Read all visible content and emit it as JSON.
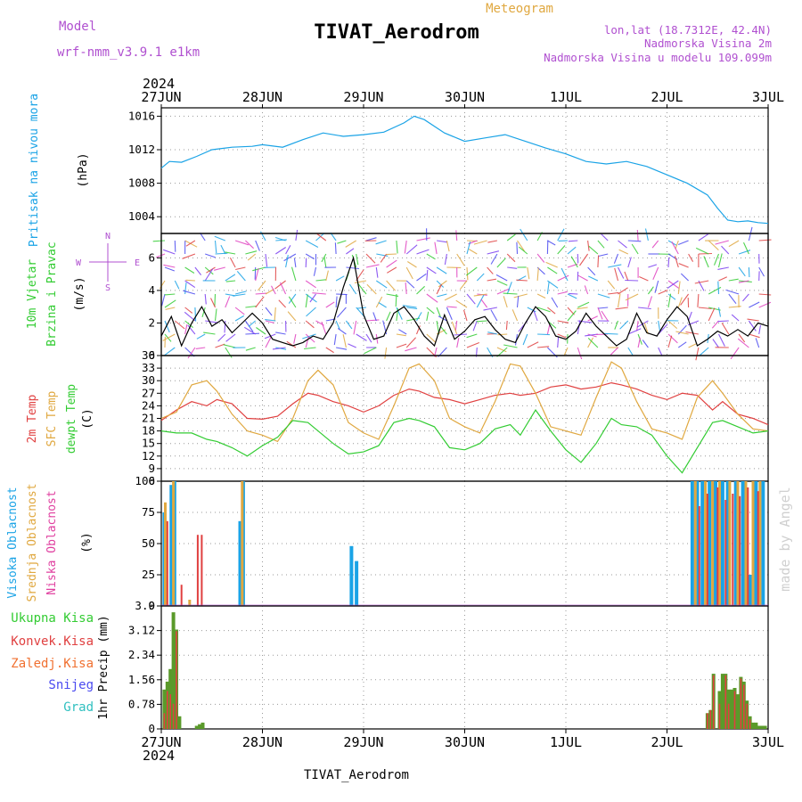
{
  "header": {
    "model_label": "Model",
    "model_name": "wrf-nmm_v3.9.1  e1km",
    "title": "TIVAT_Aerodrom",
    "subtitle": "Meteogram",
    "lonlat": "lon,lat (18.7312E, 42.4N)",
    "elev_station": "Nadmorska Visina 2m",
    "elev_model": "Nadmorska Visina u modelu 109.099m",
    "year_top": "2024",
    "year_bottom": "2024",
    "footer": "TIVAT_Aerodrom",
    "credit": "made by Angel"
  },
  "colors": {
    "pressure": "#1aa3e6",
    "wind_speed": "#000000",
    "temp2m": "#e04040",
    "sfc_temp": "#e0a840",
    "dewpt": "#33cc33",
    "cloud_high": "#1aa3e6",
    "cloud_mid": "#e0a840",
    "cloud_low": "#e04040",
    "precip_total": "#5a9a2a",
    "precip_conv": "#e04040",
    "label_purple": "#b050d0"
  },
  "axis": {
    "dates": [
      "27JUN",
      "28JUN",
      "29JUN",
      "30JUN",
      "1JUL",
      "2JUL",
      "3JUL"
    ]
  },
  "chart_data": [
    {
      "type": "line",
      "panel": "pressure",
      "ylabel_parts": [
        "Pritisak na nivou mora",
        "(hPa)"
      ],
      "ylim": [
        1002,
        1017
      ],
      "yticks": [
        1004,
        1008,
        1012,
        1016
      ],
      "x_days": [
        0,
        0.08,
        0.2,
        0.35,
        0.5,
        0.7,
        0.9,
        1.0,
        1.2,
        1.4,
        1.6,
        1.8,
        2.0,
        2.2,
        2.4,
        2.5,
        2.6,
        2.8,
        3.0,
        3.2,
        3.4,
        3.6,
        3.8,
        4.0,
        4.2,
        4.4,
        4.6,
        4.8,
        5.0,
        5.2,
        5.4,
        5.5,
        5.6,
        5.7,
        5.8,
        5.9,
        6.0
      ],
      "series": [
        {
          "values": [
            1009.8,
            1010.6,
            1010.5,
            1011.2,
            1012.0,
            1012.3,
            1012.4,
            1012.6,
            1012.3,
            1013.2,
            1014.0,
            1013.6,
            1013.8,
            1014.1,
            1015.2,
            1016.0,
            1015.6,
            1014.0,
            1013.0,
            1013.4,
            1013.8,
            1013.0,
            1012.2,
            1011.5,
            1010.6,
            1010.3,
            1010.6,
            1010.0,
            1009.0,
            1008.0,
            1006.6,
            1005.0,
            1003.6,
            1003.4,
            1003.5,
            1003.3,
            1003.2
          ]
        }
      ]
    },
    {
      "type": "line",
      "panel": "wind",
      "ylabel_parts": [
        "10m Vjetar",
        "Brzina i Pravac",
        "(m/s)"
      ],
      "compass_labels": [
        "W",
        "E",
        "N",
        "S"
      ],
      "ylim": [
        0,
        7.5
      ],
      "yticks": [
        0,
        2,
        4,
        6
      ],
      "x_days": [
        0,
        0.1,
        0.2,
        0.3,
        0.4,
        0.5,
        0.6,
        0.7,
        0.8,
        0.9,
        1.0,
        1.1,
        1.2,
        1.3,
        1.4,
        1.5,
        1.6,
        1.7,
        1.8,
        1.9,
        2.0,
        2.1,
        2.2,
        2.3,
        2.4,
        2.5,
        2.6,
        2.7,
        2.8,
        2.9,
        3.0,
        3.1,
        3.2,
        3.3,
        3.4,
        3.5,
        3.6,
        3.7,
        3.8,
        3.9,
        4.0,
        4.1,
        4.2,
        4.3,
        4.4,
        4.5,
        4.6,
        4.7,
        4.8,
        4.9,
        5.0,
        5.1,
        5.2,
        5.3,
        5.4,
        5.5,
        5.6,
        5.7,
        5.8,
        5.9,
        6.0
      ],
      "series": [
        {
          "name": "speed",
          "values": [
            1.2,
            2.4,
            0.6,
            2.0,
            3.0,
            1.8,
            2.2,
            1.4,
            2.0,
            2.6,
            2.0,
            1.0,
            0.8,
            0.6,
            0.8,
            1.2,
            1.0,
            2.0,
            4.2,
            6.0,
            2.5,
            1.0,
            1.2,
            2.6,
            3.0,
            2.2,
            1.2,
            0.6,
            2.5,
            1.0,
            1.5,
            2.2,
            2.4,
            1.6,
            1.0,
            0.8,
            2.0,
            3.0,
            2.4,
            1.2,
            1.0,
            1.5,
            2.6,
            1.8,
            1.2,
            0.6,
            1.0,
            2.6,
            1.4,
            1.2,
            2.2,
            3.0,
            2.4,
            0.6,
            1.0,
            1.5,
            1.2,
            1.6,
            1.2,
            2.0,
            1.8
          ]
        }
      ]
    },
    {
      "type": "line",
      "panel": "temperature",
      "ylabel_parts": [
        "2m Temp",
        "SFC Temp",
        "dewpt Temp",
        "(C)"
      ],
      "ylim": [
        6,
        36
      ],
      "yticks": [
        6,
        9,
        12,
        15,
        18,
        21,
        24,
        27,
        30,
        33,
        36
      ],
      "x_days": [
        0,
        0.15,
        0.3,
        0.45,
        0.55,
        0.7,
        0.85,
        1.0,
        1.15,
        1.3,
        1.45,
        1.55,
        1.7,
        1.85,
        2.0,
        2.15,
        2.3,
        2.45,
        2.55,
        2.7,
        2.85,
        3.0,
        3.15,
        3.3,
        3.45,
        3.55,
        3.7,
        3.85,
        4.0,
        4.15,
        4.3,
        4.45,
        4.55,
        4.7,
        4.85,
        5.0,
        5.15,
        5.3,
        5.45,
        5.55,
        5.7,
        5.85,
        6.0
      ],
      "series": [
        {
          "name": "2m Temp",
          "values": [
            20.5,
            23.0,
            25.0,
            24.0,
            25.5,
            24.5,
            21.0,
            20.8,
            21.5,
            24.5,
            27.0,
            26.5,
            25.0,
            24.0,
            22.5,
            24.0,
            26.5,
            28.0,
            27.5,
            26.0,
            25.5,
            24.5,
            25.5,
            26.5,
            27.0,
            26.5,
            27.0,
            28.5,
            29.0,
            28.0,
            28.5,
            29.5,
            29.0,
            28.0,
            26.5,
            25.5,
            27.0,
            26.5,
            23.0,
            25.0,
            22.0,
            21.0,
            19.5
          ]
        },
        {
          "name": "SFC Temp",
          "values": [
            21.0,
            22.5,
            29.0,
            30.0,
            27.5,
            22.0,
            18.0,
            17.0,
            15.5,
            21.0,
            30.0,
            32.5,
            29.0,
            20.0,
            17.5,
            16.0,
            24.0,
            33.0,
            34.0,
            30.0,
            21.0,
            19.0,
            17.5,
            25.0,
            34.0,
            33.5,
            27.0,
            19.0,
            18.0,
            17.0,
            26.0,
            34.5,
            33.0,
            25.0,
            18.5,
            17.5,
            16.0,
            26.0,
            30.0,
            27.0,
            22.0,
            18.5,
            18.0
          ]
        },
        {
          "name": "dewpt Temp",
          "values": [
            18.0,
            17.5,
            17.5,
            16.0,
            15.5,
            14.0,
            12.0,
            14.5,
            16.5,
            20.5,
            20.0,
            18.0,
            15.0,
            12.5,
            13.0,
            14.5,
            20.0,
            21.0,
            20.5,
            19.0,
            14.0,
            13.5,
            15.0,
            18.5,
            19.5,
            17.0,
            23.0,
            18.0,
            13.5,
            10.5,
            15.0,
            21.0,
            19.5,
            19.0,
            17.0,
            12.0,
            8.0,
            14.0,
            20.0,
            20.5,
            19.0,
            17.5,
            18.0
          ]
        }
      ]
    },
    {
      "type": "bar",
      "panel": "clouds",
      "ylabel_parts": [
        "Visoka Oblacnost",
        "Srednja Oblacnost",
        "Niska Oblacnost",
        "(%)"
      ],
      "ylim": [
        0,
        100
      ],
      "yticks": [
        0,
        25,
        50,
        75,
        100
      ],
      "series": [
        {
          "name": "Visoka Oblacnost",
          "x_days": [
            0.03,
            0.1,
            0.13,
            0.78,
            0.81,
            1.88,
            1.93,
            5.25,
            5.3,
            5.35,
            5.42,
            5.48,
            5.55,
            5.6,
            5.68,
            5.75,
            5.82,
            5.88,
            5.95
          ],
          "values": [
            75,
            97,
            100,
            68,
            100,
            48,
            36,
            100,
            100,
            100,
            100,
            100,
            100,
            100,
            100,
            100,
            25,
            100,
            100
          ]
        },
        {
          "name": "Srednja Oblacnost",
          "x_days": [
            0.04,
            0.12,
            0.28,
            0.8,
            5.28,
            5.38,
            5.45,
            5.52,
            5.62,
            5.7,
            5.78,
            5.85,
            5.92
          ],
          "values": [
            83,
            100,
            5,
            100,
            100,
            100,
            100,
            100,
            100,
            100,
            100,
            100,
            100
          ]
        },
        {
          "name": "Niska Oblacnost",
          "x_days": [
            0.06,
            0.2,
            0.36,
            0.4,
            5.32,
            5.4,
            5.5,
            5.58,
            5.65,
            5.72,
            5.8,
            5.9
          ],
          "values": [
            68,
            17,
            57,
            57,
            80,
            90,
            95,
            85,
            90,
            88,
            95,
            92
          ]
        }
      ]
    },
    {
      "type": "bar",
      "panel": "precip",
      "ylabel_parts": [
        "1hr Precip (mm)"
      ],
      "legend": [
        "Ukupna Kisa",
        "Konvek.Kisa",
        "Zaledj.Kisa",
        "Snijeg",
        "Grad"
      ],
      "ylim": [
        0,
        3.9
      ],
      "yticks": [
        0,
        0.78,
        1.56,
        2.34,
        3.12,
        3.9
      ],
      "ytick_labels": [
        "0",
        "0.78",
        "1.56",
        "2.34",
        "3.12",
        "3.9"
      ],
      "x_days": [
        0.03,
        0.06,
        0.09,
        0.12,
        0.15,
        0.18,
        0.35,
        0.38,
        0.41,
        5.4,
        5.43,
        5.46,
        5.52,
        5.55,
        5.58,
        5.61,
        5.64,
        5.67,
        5.7,
        5.73,
        5.76,
        5.79,
        5.82,
        5.85,
        5.88,
        5.91,
        5.94,
        5.97
      ],
      "series": [
        {
          "name": "Ukupna Kisa",
          "values": [
            1.25,
            1.5,
            1.9,
            3.7,
            3.15,
            0.4,
            0.1,
            0.15,
            0.2,
            0.5,
            0.6,
            1.75,
            1.2,
            1.75,
            1.75,
            1.25,
            1.25,
            1.3,
            1.1,
            1.65,
            1.5,
            0.9,
            0.4,
            0.2,
            0.2,
            0.1,
            0.1,
            0.1
          ]
        },
        {
          "name": "Konvek.Kisa",
          "values": [
            0.5,
            1.2,
            1.1,
            0.8,
            3.1,
            0,
            0,
            0,
            0,
            0.5,
            0.6,
            1.7,
            0.8,
            0,
            1.7,
            0.8,
            0,
            1.2,
            0,
            1.6,
            1.4,
            0.8,
            0.3,
            0,
            0,
            0,
            0,
            0
          ]
        }
      ]
    }
  ]
}
